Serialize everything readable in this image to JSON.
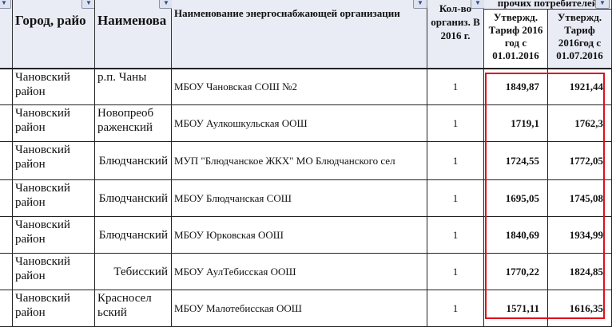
{
  "header": {
    "city": "Город, райо",
    "name": "Наименова",
    "org": "Наименование энергоснабжающей организации",
    "count": "Кол-во организ. В 2016 г.",
    "group": "прочих потребителей",
    "tariff1": "Утвержд. Тариф 2016 год с 01.01.2016",
    "tariff2": "Утвержд. Тариф 2016год с 01.07.2016"
  },
  "rows": [
    {
      "district": "Чановский район",
      "locality": "р.п. Чаны",
      "org": "МБОУ Чановская СОШ №2",
      "count": "1",
      "t1": "1849,87",
      "t2": "1921,44"
    },
    {
      "district": "Чановский район",
      "locality": "Новопреоб раженский",
      "org": "МБОУ Аулкошкульская ООШ",
      "count": "1",
      "t1": "1719,1",
      "t2": "1762,3"
    },
    {
      "district": "Чановский район",
      "locality": "Блюдчанский",
      "org": "МУП \"Блюдчанское ЖКХ\" МО Блюдчанского сел",
      "count": "1",
      "t1": "1724,55",
      "t2": "1772,05"
    },
    {
      "district": "Чановский район",
      "locality": "Блюдчанский",
      "org": "МБОУ Блюдчанская СОШ",
      "count": "1",
      "t1": "1695,05",
      "t2": "1745,08"
    },
    {
      "district": "Чановский район",
      "locality": "Блюдчанский",
      "org": "МБОУ Юрковская ООШ",
      "count": "1",
      "t1": "1840,69",
      "t2": "1934,99"
    },
    {
      "district": "Чановский район",
      "locality": "Тебисский",
      "org": "МБОУ АулТебисская ООШ",
      "count": "1",
      "t1": "1770,22",
      "t2": "1824,85"
    },
    {
      "district": "Чановский район",
      "locality": "Красносел ьский",
      "org": "МБОУ Малотебисская ООШ",
      "count": "1",
      "t1": "1571,11",
      "t2": "1616,35"
    }
  ],
  "highlight_color": "#e0101a"
}
